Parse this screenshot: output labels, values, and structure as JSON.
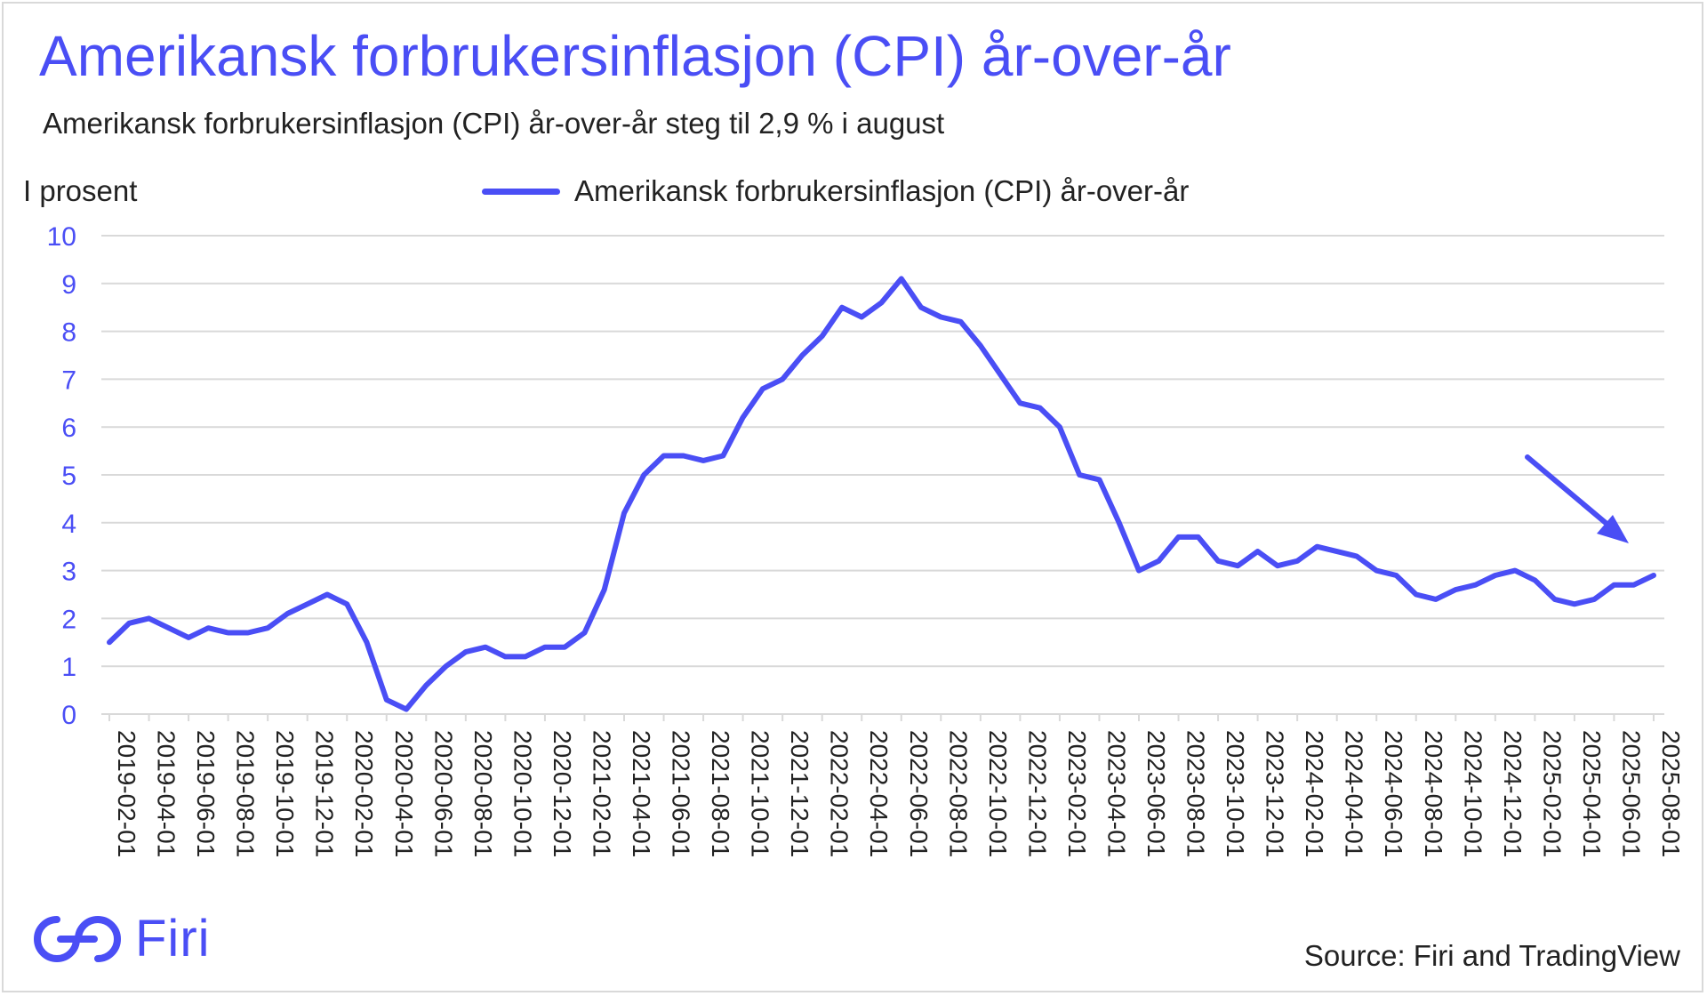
{
  "title": "Amerikansk forbrukersinflasjon (CPI) år-over-år",
  "subtitle": "Amerikansk forbrukersinflasjon (CPI) år-over-år steg til 2,9 % i august",
  "source": "Source: Firi and TradingView",
  "brand": {
    "name": "Firi",
    "logo_icon": "firi-logo-icon"
  },
  "colors": {
    "accent": "#4a4ef5",
    "grid": "#d9d9d9",
    "text": "#222222"
  },
  "chart_data": {
    "type": "line",
    "title": "Amerikansk forbrukersinflasjon (CPI) år-over-år",
    "xlabel": "",
    "ylabel": "I prosent",
    "ylim": [
      0,
      10
    ],
    "yticks": [
      "0",
      "1",
      "2",
      "3",
      "4",
      "5",
      "6",
      "7",
      "8",
      "9",
      "10"
    ],
    "legend": "top-center",
    "grid": true,
    "xtick_labels": [
      "2019-02-01",
      "2019-04-01",
      "2019-06-01",
      "2019-08-01",
      "2019-10-01",
      "2019-12-01",
      "2020-02-01",
      "2020-04-01",
      "2020-06-01",
      "2020-08-01",
      "2020-10-01",
      "2020-12-01",
      "2021-02-01",
      "2021-04-01",
      "2021-06-01",
      "2021-08-01",
      "2021-10-01",
      "2021-12-01",
      "2022-02-01",
      "2022-04-01",
      "2022-06-01",
      "2022-08-01",
      "2022-10-01",
      "2022-12-01",
      "2023-02-01",
      "2023-04-01",
      "2023-06-01",
      "2023-08-01",
      "2023-10-01",
      "2023-12-01",
      "2024-02-01",
      "2024-04-01",
      "2024-06-01",
      "2024-08-01",
      "2024-10-01",
      "2024-12-01",
      "2025-02-01",
      "2025-04-01",
      "2025-06-01",
      "2025-08-01"
    ],
    "series": [
      {
        "name": "Amerikansk forbrukersinflasjon (CPI) år-over-år",
        "values": [
          1.5,
          1.9,
          2.0,
          1.8,
          1.6,
          1.8,
          1.7,
          1.7,
          1.8,
          2.1,
          2.3,
          2.5,
          2.3,
          1.5,
          0.3,
          0.1,
          0.6,
          1.0,
          1.3,
          1.4,
          1.2,
          1.2,
          1.4,
          1.4,
          1.7,
          2.6,
          4.2,
          5.0,
          5.4,
          5.4,
          5.3,
          5.4,
          6.2,
          6.8,
          7.0,
          7.5,
          7.9,
          8.5,
          8.3,
          8.6,
          9.1,
          8.5,
          8.3,
          8.2,
          7.7,
          7.1,
          6.5,
          6.4,
          6.0,
          5.0,
          4.9,
          4.0,
          3.0,
          3.2,
          3.7,
          3.7,
          3.2,
          3.1,
          3.4,
          3.1,
          3.2,
          3.5,
          3.4,
          3.3,
          3.0,
          2.9,
          2.5,
          2.4,
          2.6,
          2.7,
          2.9,
          3.0,
          2.8,
          2.4,
          2.3,
          2.4,
          2.7,
          2.7,
          2.9
        ]
      }
    ],
    "annotation": {
      "type": "arrow",
      "direction": "down-right",
      "meaning": "falling trend"
    }
  }
}
